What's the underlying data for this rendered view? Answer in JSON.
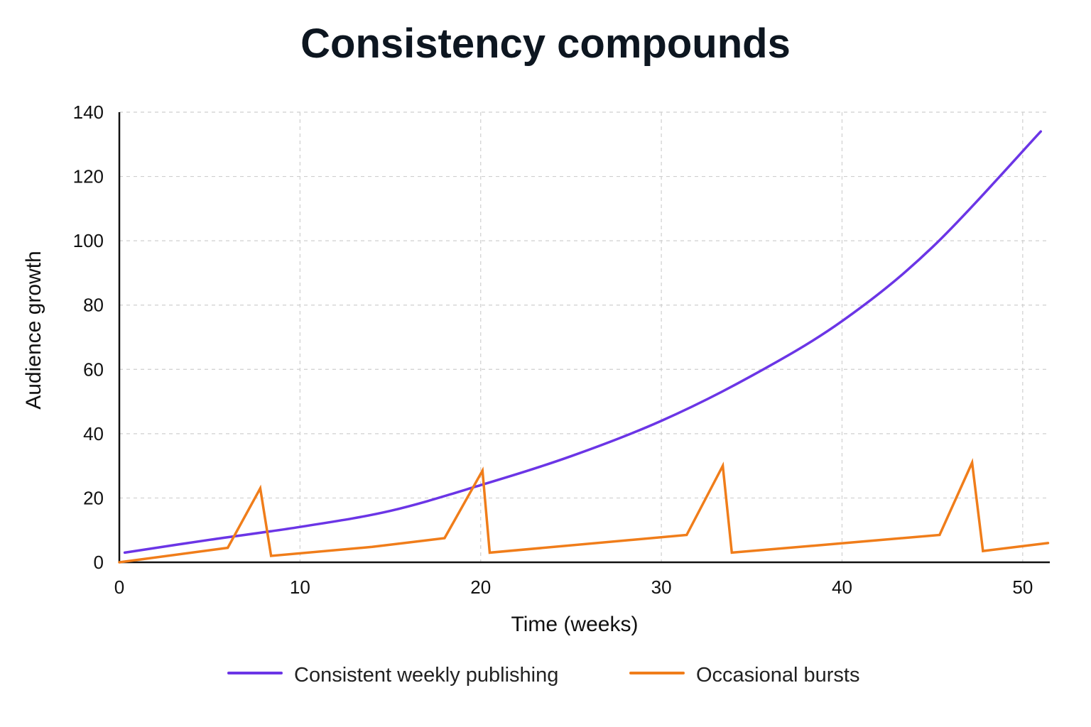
{
  "chart_data": {
    "type": "line",
    "title": "Consistency compounds",
    "xlabel": "Time (weeks)",
    "ylabel": "Audience growth",
    "xlim": [
      0,
      51.5
    ],
    "ylim": [
      0,
      140
    ],
    "xticks": [
      0,
      10,
      20,
      30,
      40,
      50
    ],
    "yticks": [
      0,
      20,
      40,
      60,
      80,
      100,
      120,
      140
    ],
    "grid": true,
    "legend_position": "bottom",
    "series": [
      {
        "name": "Consistent weekly publishing",
        "color": "#6b35e6",
        "x": [
          0.3,
          5,
          10,
          15,
          20,
          25,
          30,
          35,
          40,
          45,
          51
        ],
        "y": [
          3,
          7,
          11,
          16,
          24,
          33,
          44,
          58,
          75,
          98,
          134
        ]
      },
      {
        "name": "Occasional bursts",
        "color": "#f07d1a",
        "x": [
          0,
          6,
          7.8,
          8.4,
          14,
          18,
          20.1,
          20.5,
          31.4,
          33.4,
          33.9,
          45.4,
          47.2,
          47.8,
          51.4
        ],
        "y": [
          0,
          4.5,
          23,
          2,
          4.8,
          7.5,
          28.5,
          3,
          8.5,
          30,
          3,
          8.5,
          31,
          3.5,
          6
        ]
      }
    ]
  }
}
